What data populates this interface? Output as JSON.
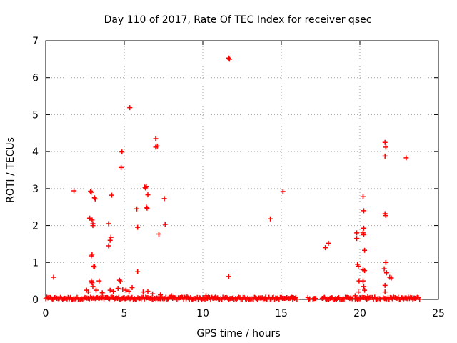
{
  "chart_data": {
    "type": "scatter",
    "title": "Day 110 of 2017, Rate Of TEC Index for receiver qsec",
    "xlabel": "GPS time / hours",
    "ylabel": "ROTI / TECUs",
    "xlim": [
      0,
      25
    ],
    "ylim": [
      0,
      7
    ],
    "xticks": [
      0,
      5,
      10,
      15,
      20,
      25
    ],
    "yticks": [
      0,
      1,
      2,
      3,
      4,
      5,
      6,
      7
    ],
    "grid": true,
    "marker": "+",
    "color": "#ff0000",
    "points": [
      [
        0.5,
        0.6
      ],
      [
        1.8,
        2.94
      ],
      [
        2.8,
        2.2
      ],
      [
        2.85,
        2.93
      ],
      [
        2.9,
        2.9
      ],
      [
        2.95,
        2.15
      ],
      [
        3.0,
        2.05
      ],
      [
        3.0,
        2.0
      ],
      [
        2.95,
        1.22
      ],
      [
        2.9,
        1.18
      ],
      [
        3.05,
        0.9
      ],
      [
        3.1,
        0.88
      ],
      [
        2.9,
        0.5
      ],
      [
        2.95,
        0.45
      ],
      [
        3.1,
        2.75
      ],
      [
        3.15,
        2.72
      ],
      [
        3.4,
        0.5
      ],
      [
        4.0,
        2.05
      ],
      [
        4.0,
        1.45
      ],
      [
        4.1,
        1.6
      ],
      [
        4.15,
        1.68
      ],
      [
        4.2,
        2.82
      ],
      [
        4.7,
        0.52
      ],
      [
        4.75,
        0.48
      ],
      [
        4.8,
        3.57
      ],
      [
        4.85,
        3.99
      ],
      [
        5.35,
        5.19
      ],
      [
        5.8,
        2.45
      ],
      [
        5.85,
        1.95
      ],
      [
        5.85,
        0.75
      ],
      [
        6.3,
        3.04
      ],
      [
        6.35,
        3.02
      ],
      [
        6.4,
        3.06
      ],
      [
        6.4,
        2.5
      ],
      [
        6.45,
        2.47
      ],
      [
        6.5,
        2.83
      ],
      [
        7.0,
        4.35
      ],
      [
        7.0,
        4.12
      ],
      [
        7.1,
        4.15
      ],
      [
        7.2,
        1.77
      ],
      [
        7.55,
        2.73
      ],
      [
        7.6,
        2.03
      ],
      [
        11.65,
        6.53
      ],
      [
        11.7,
        6.5
      ],
      [
        11.65,
        0.62
      ],
      [
        14.3,
        2.18
      ],
      [
        15.1,
        2.92
      ],
      [
        17.8,
        1.4
      ],
      [
        18.0,
        1.52
      ],
      [
        19.8,
        1.8
      ],
      [
        19.8,
        1.65
      ],
      [
        19.85,
        0.95
      ],
      [
        19.9,
        0.9
      ],
      [
        19.95,
        0.5
      ],
      [
        19.9,
        0.2
      ],
      [
        20.2,
        2.78
      ],
      [
        20.25,
        2.4
      ],
      [
        20.25,
        1.93
      ],
      [
        20.2,
        1.8
      ],
      [
        20.25,
        1.75
      ],
      [
        20.3,
        1.33
      ],
      [
        20.2,
        0.8
      ],
      [
        20.3,
        0.78
      ],
      [
        20.2,
        0.5
      ],
      [
        20.25,
        0.35
      ],
      [
        20.3,
        0.25
      ],
      [
        21.55,
        0.83
      ],
      [
        21.6,
        4.25
      ],
      [
        21.65,
        4.12
      ],
      [
        21.6,
        3.88
      ],
      [
        21.6,
        2.32
      ],
      [
        21.65,
        2.27
      ],
      [
        21.65,
        1.0
      ],
      [
        21.7,
        0.72
      ],
      [
        21.6,
        0.38
      ],
      [
        21.6,
        0.2
      ],
      [
        21.9,
        0.6
      ],
      [
        22.0,
        0.58
      ],
      [
        22.95,
        3.83
      ],
      [
        2.6,
        0.25
      ],
      [
        2.7,
        0.2
      ],
      [
        3.0,
        0.35
      ],
      [
        3.2,
        0.25
      ],
      [
        3.6,
        0.18
      ],
      [
        4.1,
        0.25
      ],
      [
        4.3,
        0.22
      ],
      [
        4.6,
        0.3
      ],
      [
        4.9,
        0.28
      ],
      [
        5.1,
        0.25
      ],
      [
        5.3,
        0.22
      ],
      [
        5.5,
        0.32
      ],
      [
        6.2,
        0.2
      ],
      [
        6.5,
        0.22
      ],
      [
        6.8,
        0.15
      ],
      [
        7.3,
        0.12
      ],
      [
        8.0,
        0.1
      ],
      [
        9.0,
        0.08
      ],
      [
        10.2,
        0.1
      ],
      [
        10.8,
        0.06
      ],
      [
        14.0,
        0.06
      ],
      [
        15.7,
        0.05
      ],
      [
        19.7,
        0.1
      ],
      [
        20.5,
        0.08
      ]
    ],
    "baseline_segments": [
      [
        0.0,
        16.0
      ],
      [
        16.7,
        16.8
      ],
      [
        17.0,
        17.2
      ],
      [
        17.6,
        19.5
      ],
      [
        19.7,
        21.3
      ],
      [
        21.5,
        23.8
      ]
    ],
    "baseline_max": 0.06
  }
}
